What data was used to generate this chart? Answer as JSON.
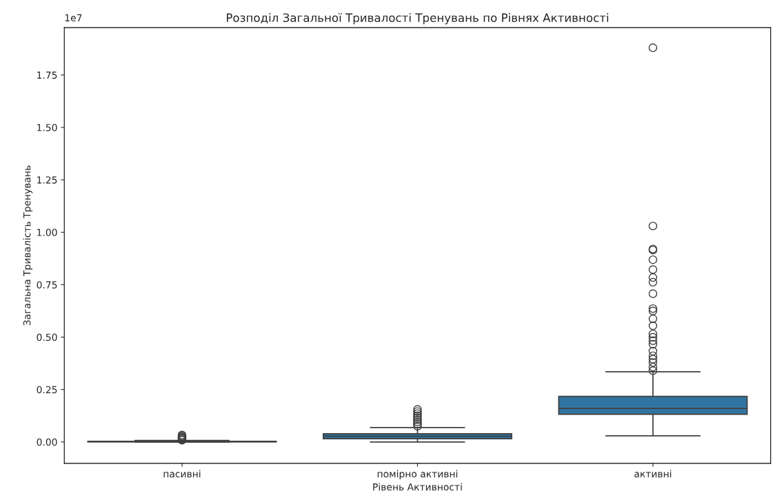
{
  "chart_data": {
    "type": "box",
    "title": "Розподіл Загальної Тривалості Тренувань по Рівнях Активності",
    "xlabel": "Рівень Активності",
    "ylabel": "Загальна Тривалість Тренувань",
    "annotations": [
      "1e7"
    ],
    "categories": [
      "пасивні",
      "помірно активні",
      "активні"
    ],
    "color": "#3274a1",
    "boxes": [
      {
        "low": 0,
        "q1": 0.0003,
        "median": 0.0015,
        "q3": 0.003,
        "high": 0.007,
        "outliers": [
          0.008,
          0.012,
          0.016,
          0.02,
          0.024,
          0.028,
          0.033
        ]
      },
      {
        "low": 0,
        "q1": 0.015,
        "median": 0.028,
        "q3": 0.039,
        "high": 0.069,
        "outliers": [
          0.075,
          0.085,
          0.095,
          0.105,
          0.115,
          0.125,
          0.135,
          0.145,
          0.155
        ]
      },
      {
        "low": 0.029,
        "q1": 0.132,
        "median": 0.16,
        "q3": 0.217,
        "high": 0.335,
        "outliers": [
          0.34,
          0.357,
          0.379,
          0.395,
          0.411,
          0.433,
          0.466,
          0.483,
          0.499,
          0.515,
          0.554,
          0.587,
          0.625,
          0.636,
          0.707,
          0.762,
          0.784,
          0.822,
          0.869,
          0.915,
          0.92,
          1.03,
          1.88
        ]
      }
    ],
    "ylim": [
      -0.102,
      1.976
    ],
    "yticks": [
      {
        "value": 0,
        "label": "0.00"
      },
      {
        "value": 0.25,
        "label": "0.25"
      },
      {
        "value": 0.5,
        "label": "0.50"
      },
      {
        "value": 0.75,
        "label": "0.75"
      },
      {
        "value": 1.0,
        "label": "1.00"
      },
      {
        "value": 1.25,
        "label": "1.25"
      },
      {
        "value": 1.5,
        "label": "1.50"
      },
      {
        "value": 1.75,
        "label": "1.75"
      }
    ],
    "grid": false,
    "legend": false
  }
}
